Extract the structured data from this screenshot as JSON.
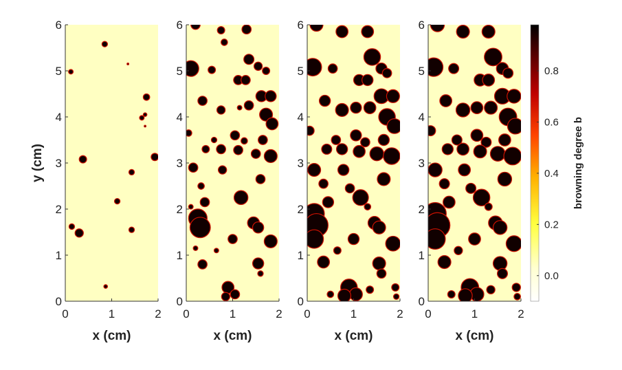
{
  "chart_data": {
    "type": "heatmap",
    "panels": [
      {
        "name": "panel-1",
        "xlabel": "x (cm)",
        "ylabel": "y (cm)",
        "xlim": [
          0,
          2
        ],
        "ylim": [
          0,
          6
        ],
        "xticks": [
          "0",
          "1",
          "2"
        ],
        "yticks": [
          "0",
          "1",
          "2",
          "3",
          "4",
          "5",
          "6"
        ],
        "spots": [
          [
            0.85,
            5.58,
            0.06
          ],
          [
            0.12,
            4.98,
            0.05
          ],
          [
            1.35,
            5.15,
            0.02
          ],
          [
            1.75,
            4.43,
            0.07
          ],
          [
            1.72,
            4.05,
            0.04
          ],
          [
            1.65,
            3.98,
            0.05
          ],
          [
            1.72,
            3.8,
            0.02
          ],
          [
            1.93,
            3.13,
            0.08
          ],
          [
            0.38,
            3.08,
            0.08
          ],
          [
            1.43,
            2.8,
            0.06
          ],
          [
            1.12,
            2.17,
            0.06
          ],
          [
            0.14,
            1.62,
            0.06
          ],
          [
            0.3,
            1.48,
            0.09
          ],
          [
            1.43,
            1.55,
            0.06
          ],
          [
            0.87,
            0.32,
            0.04
          ]
        ]
      },
      {
        "name": "panel-2",
        "xlabel": "x (cm)",
        "xlim": [
          0,
          2
        ],
        "ylim": [
          0,
          6
        ],
        "xticks": [
          "0",
          "1",
          "2"
        ],
        "yticks": [
          "0",
          "1",
          "2",
          "3",
          "4",
          "5",
          "6"
        ],
        "spots": [
          [
            0.2,
            6.0,
            0.1
          ],
          [
            0.75,
            5.88,
            0.08
          ],
          [
            0.82,
            5.62,
            0.07
          ],
          [
            1.3,
            5.9,
            0.1
          ],
          [
            0.1,
            5.05,
            0.17
          ],
          [
            0.55,
            5.02,
            0.08
          ],
          [
            1.12,
            4.8,
            0.1
          ],
          [
            1.28,
            4.8,
            0.1
          ],
          [
            1.35,
            5.25,
            0.11
          ],
          [
            1.55,
            5.1,
            0.09
          ],
          [
            1.72,
            5.0,
            0.08
          ],
          [
            0.35,
            4.35,
            0.1
          ],
          [
            0.75,
            4.15,
            0.09
          ],
          [
            1.15,
            4.2,
            0.05
          ],
          [
            1.35,
            4.25,
            0.1
          ],
          [
            1.62,
            4.45,
            0.12
          ],
          [
            1.82,
            4.45,
            0.12
          ],
          [
            1.72,
            4.05,
            0.14
          ],
          [
            1.85,
            3.85,
            0.13
          ],
          [
            0.05,
            3.65,
            0.07
          ],
          [
            0.6,
            3.5,
            0.06
          ],
          [
            1.05,
            3.6,
            0.1
          ],
          [
            1.25,
            3.48,
            0.07
          ],
          [
            1.65,
            3.5,
            0.1
          ],
          [
            0.42,
            3.3,
            0.08
          ],
          [
            0.75,
            3.3,
            0.1
          ],
          [
            1.12,
            3.28,
            0.1
          ],
          [
            1.5,
            3.2,
            0.1
          ],
          [
            1.82,
            3.15,
            0.14
          ],
          [
            0.15,
            2.9,
            0.1
          ],
          [
            0.78,
            2.85,
            0.09
          ],
          [
            1.6,
            2.65,
            0.1
          ],
          [
            0.32,
            2.5,
            0.07
          ],
          [
            1.18,
            2.25,
            0.15
          ],
          [
            0.1,
            2.05,
            0.05
          ],
          [
            0.4,
            2.15,
            0.1
          ],
          [
            0.25,
            1.8,
            0.2
          ],
          [
            0.3,
            1.6,
            0.22
          ],
          [
            1.45,
            1.7,
            0.13
          ],
          [
            1.55,
            1.6,
            0.12
          ],
          [
            0.2,
            1.15,
            0.05
          ],
          [
            0.65,
            1.1,
            0.05
          ],
          [
            1.0,
            1.35,
            0.1
          ],
          [
            1.82,
            1.3,
            0.14
          ],
          [
            0.35,
            0.8,
            0.1
          ],
          [
            1.55,
            0.82,
            0.12
          ],
          [
            1.6,
            0.6,
            0.06
          ],
          [
            0.9,
            0.3,
            0.13
          ],
          [
            1.05,
            0.15,
            0.1
          ],
          [
            0.85,
            0.1,
            0.09
          ]
        ]
      },
      {
        "name": "panel-3",
        "xlabel": "x (cm)",
        "xlim": [
          0,
          2
        ],
        "ylim": [
          0,
          6
        ],
        "xticks": [
          "0",
          "1",
          "2"
        ],
        "yticks": [
          "0",
          "1",
          "2",
          "3",
          "4",
          "5",
          "6"
        ],
        "spots": [
          [
            0.2,
            6.0,
            0.14
          ],
          [
            0.75,
            5.85,
            0.13
          ],
          [
            1.3,
            5.85,
            0.13
          ],
          [
            0.12,
            5.08,
            0.19
          ],
          [
            0.55,
            5.05,
            0.1
          ],
          [
            1.4,
            5.3,
            0.18
          ],
          [
            1.12,
            4.8,
            0.12
          ],
          [
            1.3,
            4.8,
            0.12
          ],
          [
            1.6,
            5.05,
            0.12
          ],
          [
            1.72,
            4.95,
            0.1
          ],
          [
            0.38,
            4.35,
            0.12
          ],
          [
            0.75,
            4.15,
            0.14
          ],
          [
            1.05,
            4.2,
            0.12
          ],
          [
            1.35,
            4.2,
            0.13
          ],
          [
            1.6,
            4.45,
            0.16
          ],
          [
            1.85,
            4.45,
            0.14
          ],
          [
            1.72,
            4.0,
            0.18
          ],
          [
            1.88,
            3.8,
            0.16
          ],
          [
            0.05,
            3.7,
            0.1
          ],
          [
            0.62,
            3.5,
            0.1
          ],
          [
            1.05,
            3.6,
            0.12
          ],
          [
            1.25,
            3.45,
            0.1
          ],
          [
            1.65,
            3.5,
            0.12
          ],
          [
            0.42,
            3.3,
            0.11
          ],
          [
            0.75,
            3.3,
            0.12
          ],
          [
            1.12,
            3.25,
            0.13
          ],
          [
            1.5,
            3.2,
            0.15
          ],
          [
            1.82,
            3.15,
            0.18
          ],
          [
            0.15,
            2.85,
            0.14
          ],
          [
            0.78,
            2.85,
            0.12
          ],
          [
            1.65,
            2.65,
            0.14
          ],
          [
            0.35,
            2.55,
            0.1
          ],
          [
            0.92,
            2.45,
            0.1
          ],
          [
            1.15,
            2.25,
            0.17
          ],
          [
            0.45,
            2.15,
            0.12
          ],
          [
            1.3,
            2.05,
            0.07
          ],
          [
            0.15,
            1.9,
            0.22
          ],
          [
            0.2,
            1.65,
            0.25
          ],
          [
            0.15,
            1.35,
            0.2
          ],
          [
            1.45,
            1.7,
            0.14
          ],
          [
            1.55,
            1.6,
            0.14
          ],
          [
            1.0,
            1.35,
            0.12
          ],
          [
            1.85,
            1.25,
            0.16
          ],
          [
            0.35,
            0.85,
            0.13
          ],
          [
            0.65,
            1.1,
            0.08
          ],
          [
            1.55,
            0.82,
            0.14
          ],
          [
            1.6,
            0.6,
            0.1
          ],
          [
            0.9,
            0.3,
            0.18
          ],
          [
            1.05,
            0.15,
            0.14
          ],
          [
            0.8,
            0.12,
            0.14
          ],
          [
            1.35,
            0.25,
            0.08
          ],
          [
            1.9,
            0.3,
            0.08
          ],
          [
            0.5,
            0.15,
            0.07
          ],
          [
            1.92,
            0.1,
            0.06
          ]
        ]
      },
      {
        "name": "panel-4",
        "xlabel": "x (cm)",
        "xlim": [
          0,
          2
        ],
        "ylim": [
          0,
          6
        ],
        "xticks": [
          "0",
          "1",
          "2"
        ],
        "yticks": [
          "0",
          "1",
          "2",
          "3",
          "4",
          "5",
          "6"
        ],
        "spots": [
          [
            0.2,
            6.0,
            0.15
          ],
          [
            0.75,
            5.85,
            0.14
          ],
          [
            1.3,
            5.85,
            0.14
          ],
          [
            0.12,
            5.08,
            0.2
          ],
          [
            0.55,
            5.05,
            0.11
          ],
          [
            1.4,
            5.3,
            0.19
          ],
          [
            1.12,
            4.8,
            0.13
          ],
          [
            1.3,
            4.8,
            0.13
          ],
          [
            1.6,
            5.05,
            0.13
          ],
          [
            1.72,
            4.95,
            0.11
          ],
          [
            0.38,
            4.35,
            0.13
          ],
          [
            0.75,
            4.15,
            0.15
          ],
          [
            1.05,
            4.2,
            0.13
          ],
          [
            1.35,
            4.2,
            0.14
          ],
          [
            1.6,
            4.45,
            0.17
          ],
          [
            1.85,
            4.45,
            0.15
          ],
          [
            1.72,
            4.0,
            0.19
          ],
          [
            1.88,
            3.8,
            0.17
          ],
          [
            0.05,
            3.7,
            0.11
          ],
          [
            0.62,
            3.5,
            0.11
          ],
          [
            1.05,
            3.6,
            0.13
          ],
          [
            1.25,
            3.45,
            0.11
          ],
          [
            1.65,
            3.5,
            0.13
          ],
          [
            0.42,
            3.3,
            0.12
          ],
          [
            0.75,
            3.3,
            0.13
          ],
          [
            1.12,
            3.25,
            0.14
          ],
          [
            1.5,
            3.2,
            0.16
          ],
          [
            1.82,
            3.15,
            0.19
          ],
          [
            0.15,
            2.85,
            0.15
          ],
          [
            0.78,
            2.85,
            0.13
          ],
          [
            1.65,
            2.65,
            0.15
          ],
          [
            0.35,
            2.55,
            0.11
          ],
          [
            0.92,
            2.45,
            0.11
          ],
          [
            1.15,
            2.25,
            0.18
          ],
          [
            0.45,
            2.15,
            0.13
          ],
          [
            1.3,
            2.05,
            0.08
          ],
          [
            0.15,
            1.9,
            0.24
          ],
          [
            0.2,
            1.65,
            0.27
          ],
          [
            0.15,
            1.35,
            0.22
          ],
          [
            1.45,
            1.7,
            0.15
          ],
          [
            1.55,
            1.6,
            0.15
          ],
          [
            1.0,
            1.35,
            0.13
          ],
          [
            1.85,
            1.25,
            0.17
          ],
          [
            0.35,
            0.85,
            0.14
          ],
          [
            0.65,
            1.1,
            0.09
          ],
          [
            1.55,
            0.82,
            0.15
          ],
          [
            1.6,
            0.6,
            0.11
          ],
          [
            0.9,
            0.3,
            0.19
          ],
          [
            1.05,
            0.15,
            0.15
          ],
          [
            0.8,
            0.12,
            0.15
          ],
          [
            1.35,
            0.25,
            0.09
          ],
          [
            1.9,
            0.3,
            0.09
          ],
          [
            0.5,
            0.15,
            0.08
          ],
          [
            1.92,
            0.1,
            0.07
          ]
        ]
      }
    ],
    "colorbar": {
      "label": "browning degree b",
      "range": [
        -0.1,
        0.98
      ],
      "ticks": [
        0.0,
        0.2,
        0.4,
        0.6,
        0.8
      ],
      "tick_labels": [
        "0.0",
        "0.2",
        "0.4",
        "0.6",
        "0.8"
      ],
      "colormap": "hot-reversed",
      "background_color": "#ffffc2",
      "spot_color": "#110000",
      "edge_color": "#cc1100"
    }
  }
}
